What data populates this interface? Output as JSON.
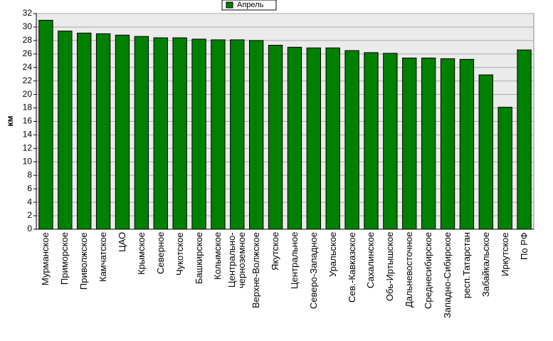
{
  "chart_data": {
    "type": "bar",
    "y_label": "км",
    "legend": "Апрель",
    "color": "#008000",
    "categories": [
      "Мурманское",
      "Приморское",
      "Приволжское",
      "Камчатское",
      "ЦАО",
      "Крымское",
      "Северное",
      "Чукотское",
      "Башкирское",
      "Колымское",
      "Центрально-черноземное",
      "Верхне-Волжское",
      "Якутское",
      "Центральное",
      "Северо-Западное",
      "Уральское",
      "Сев.-Кавказское",
      "Сахалинское",
      "Обь-Иртышское",
      "Дальневосточное",
      "Среднесибирское",
      "Западно-Сибирское",
      "респ.Татарстан",
      "Забайкальское",
      "Иркутское",
      "По РФ"
    ],
    "values": [
      31.0,
      29.4,
      29.1,
      29.0,
      28.8,
      28.6,
      28.4,
      28.4,
      28.2,
      28.1,
      28.1,
      28.0,
      27.3,
      27.0,
      26.9,
      26.9,
      26.5,
      26.2,
      26.1,
      25.4,
      25.4,
      25.3,
      25.2,
      22.9,
      18.1,
      26.6
    ],
    "ylim": [
      0,
      32
    ],
    "yticks": [
      0,
      2,
      4,
      6,
      8,
      10,
      12,
      14,
      16,
      18,
      20,
      22,
      24,
      26,
      28,
      30,
      32
    ],
    "grid": true
  }
}
